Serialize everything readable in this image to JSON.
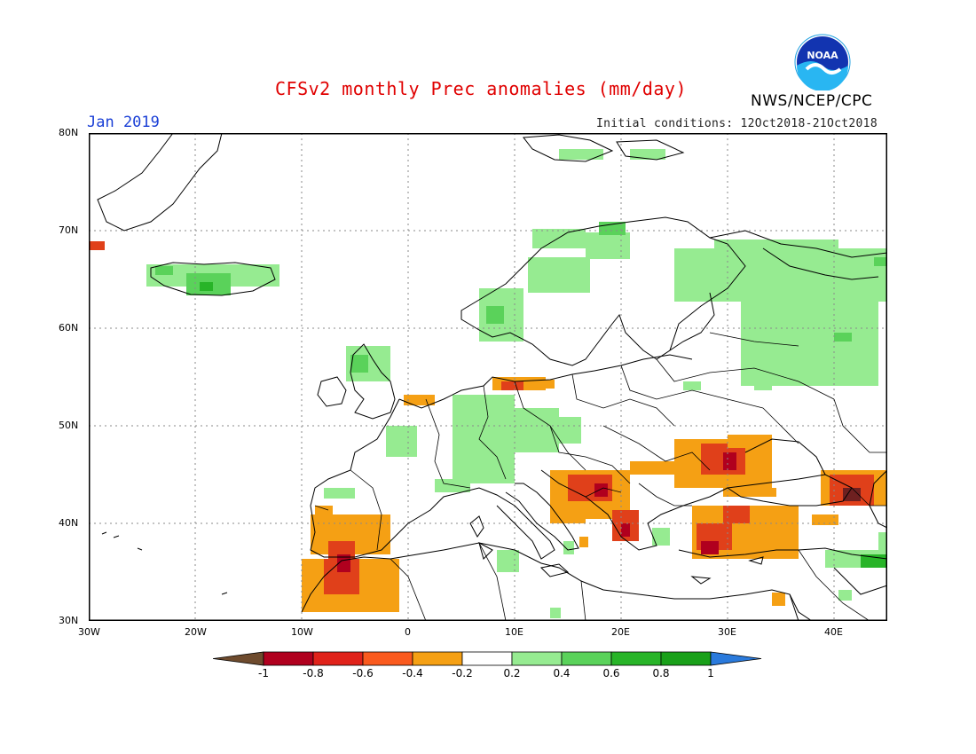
{
  "title": "CFSv2 monthly Prec anomalies (mm/day)",
  "month": "Jan 2019",
  "initial_conditions": "Initial conditions: 12Oct2018-21Oct2018",
  "agency": "NWS/NCEP/CPC",
  "logo_text": "NOAA",
  "lat_labels": [
    "80N",
    "70N",
    "60N",
    "50N",
    "40N",
    "30N"
  ],
  "lon_labels": [
    "30W",
    "20W",
    "10W",
    "0",
    "10E",
    "20E",
    "30E",
    "40E"
  ],
  "colorbar": {
    "labels": [
      "-1",
      "-0.8",
      "-0.6",
      "-0.4",
      "-0.2",
      "0.2",
      "0.4",
      "0.6",
      "0.8",
      "1"
    ],
    "colors": [
      "#6e4b2d",
      "#b0001e",
      "#e0221a",
      "#fa5a1e",
      "#f5a014",
      "#ffffff",
      "#96eb91",
      "#5ad25a",
      "#28b428",
      "#19a019",
      "#2a7adc"
    ]
  },
  "map_colors": {
    "wet_light": "#96eb91",
    "wet_mid": "#5ad25a",
    "wet_dark": "#28b428",
    "dry_light": "#f5a014",
    "dry_mid": "#e0401a",
    "dry_dark": "#b0001e",
    "dry_extreme": "#6e2020",
    "coast": "#000000"
  }
}
